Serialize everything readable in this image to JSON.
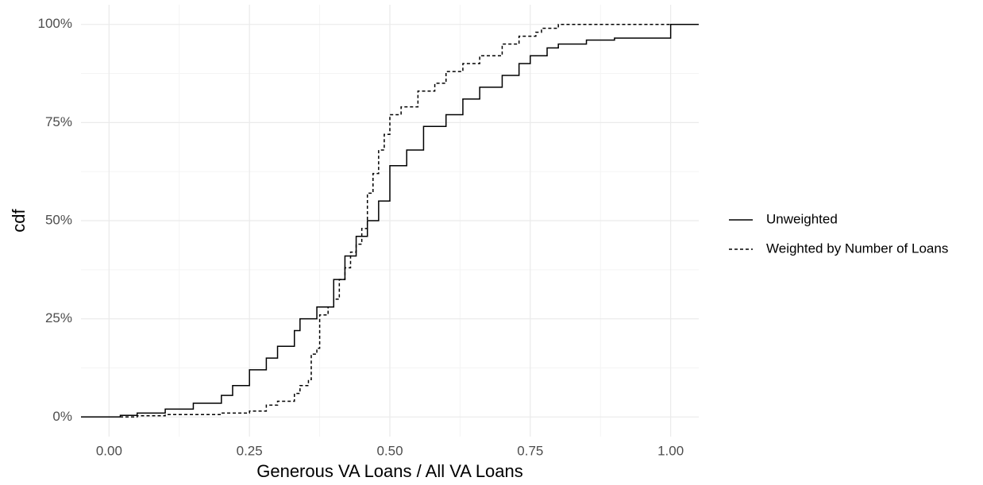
{
  "chart_data": {
    "type": "ecdf",
    "x_label": "Generous VA Loans / All VA Loans",
    "y_label": "cdf",
    "xlim": [
      -0.05,
      1.05
    ],
    "ylim": [
      -5,
      105
    ],
    "xticks": [
      {
        "value": 0,
        "label": "0.00"
      },
      {
        "value": 0.25,
        "label": "0.25"
      },
      {
        "value": 0.5,
        "label": "0.50"
      },
      {
        "value": 0.75,
        "label": "0.75"
      },
      {
        "value": 1,
        "label": "1.00"
      }
    ],
    "yticks": [
      {
        "value": 0,
        "label": "0%"
      },
      {
        "value": 25,
        "label": "25%"
      },
      {
        "value": 50,
        "label": "50%"
      },
      {
        "value": 75,
        "label": "75%"
      },
      {
        "value": 100,
        "label": "100%"
      }
    ],
    "grid": true,
    "minor_grid": true,
    "legend": "right",
    "series": [
      {
        "name": "Unweighted",
        "color": "#000000",
        "dash": "solid",
        "x": [
          0,
          0.02,
          0.05,
          0.1,
          0.15,
          0.2,
          0.22,
          0.25,
          0.25,
          0.28,
          0.3,
          0.33,
          0.34,
          0.37,
          0.4,
          0.42,
          0.44,
          0.46,
          0.48,
          0.5,
          0.5,
          0.53,
          0.56,
          0.6,
          0.63,
          0.66,
          0.7,
          0.73,
          0.75,
          0.78,
          0.8,
          0.85,
          0.9,
          1.0,
          1.0
        ],
        "values": [
          0,
          0.4,
          1,
          2,
          3.5,
          5.5,
          8,
          10,
          12,
          15,
          18,
          22,
          25,
          28,
          35,
          41,
          46,
          50,
          55,
          58,
          64,
          68,
          74,
          77,
          81,
          84,
          87,
          90,
          92,
          94,
          95,
          96,
          96.5,
          96.5,
          100
        ]
      },
      {
        "name": "Weighted by Number of Loans",
        "color": "#000000",
        "dash": "dashed",
        "x": [
          0,
          0.05,
          0.1,
          0.2,
          0.25,
          0.28,
          0.3,
          0.33,
          0.34,
          0.355,
          0.36,
          0.37,
          0.375,
          0.39,
          0.4,
          0.41,
          0.42,
          0.43,
          0.44,
          0.45,
          0.46,
          0.46,
          0.47,
          0.48,
          0.49,
          0.5,
          0.52,
          0.55,
          0.58,
          0.6,
          0.63,
          0.66,
          0.7,
          0.73,
          0.76,
          0.77,
          0.8
        ],
        "values": [
          0,
          0.3,
          0.6,
          1,
          1.5,
          3,
          4,
          6,
          8,
          9.5,
          16,
          17.5,
          26,
          28,
          30,
          35,
          38,
          42,
          44,
          48,
          50,
          57,
          62,
          68,
          72,
          77,
          79,
          83,
          85,
          88,
          90,
          92,
          95,
          97,
          98,
          99,
          100
        ]
      }
    ]
  }
}
